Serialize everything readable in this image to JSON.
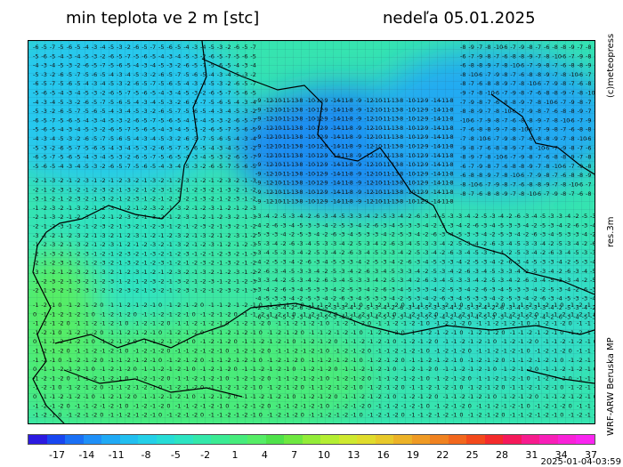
{
  "header": {
    "title_left": "min teplota ve 2 m [stc]",
    "title_right": "nedeľa 05.01.2025"
  },
  "side_labels": {
    "credit": "(c)meteopress",
    "resolution": "res.3m",
    "model": "WRF-ARW Beruska MP"
  },
  "timestamp": "2025-01-04-03:59",
  "legend": {
    "ticks": [
      "-17",
      "-14",
      "-11",
      "-8",
      "-5",
      "-2",
      "1",
      "4",
      "7",
      "10",
      "13",
      "16",
      "19",
      "22",
      "25",
      "28",
      "31",
      "34",
      "37"
    ],
    "colors": [
      "#2c1ae0",
      "#1846f0",
      "#1a70f5",
      "#1f90f8",
      "#20aaf5",
      "#22bff0",
      "#24d0e8",
      "#26dcd6",
      "#2ce4c2",
      "#33e8aa",
      "#3aeb93",
      "#46ec7c",
      "#55ed66",
      "#4fe24a",
      "#6ee840",
      "#93ec38",
      "#b4ee32",
      "#cfe92f",
      "#e0dc2c",
      "#e8c92a",
      "#ecb227",
      "#ef9a24",
      "#f08220",
      "#f2671d",
      "#f3491b",
      "#f42b2b",
      "#f5195a",
      "#f71c8e",
      "#f81fb8",
      "#f922d8",
      "#fa25f0"
    ]
  },
  "map": {
    "regions": [
      {
        "name": "northwest",
        "fill": "#27c8ee",
        "values": [
          "-6",
          "-5",
          "-7",
          "-5",
          "-6",
          "-5",
          "-4",
          "-3",
          "-4",
          "-5",
          "-3",
          "-2"
        ]
      },
      {
        "name": "north-central-cold",
        "fill": "#1c8ef2",
        "values": [
          "-9",
          "-12",
          "-10",
          "-11",
          "-13",
          "-8",
          "-10",
          "-12",
          "-9",
          "-14",
          "-11",
          "-8"
        ]
      },
      {
        "name": "northeast",
        "fill": "#22aaf2",
        "values": [
          "-8",
          "-9",
          "-7",
          "-8",
          "-10",
          "-6",
          "-7",
          "-9",
          "-8",
          "-7",
          "-6",
          "-8"
        ]
      },
      {
        "name": "west-central",
        "fill": "#2ee3c0",
        "values": [
          "-2",
          "-1",
          "-3",
          "-2",
          "-1",
          "-2",
          "-3",
          "-1",
          "-2",
          "-1",
          "-2",
          "-3"
        ]
      },
      {
        "name": "central",
        "fill": "#3ae6a4",
        "values": [
          "-3",
          "-4",
          "-2",
          "-5",
          "-3",
          "-4",
          "-2",
          "-6",
          "-3",
          "-4",
          "-5",
          "-3"
        ]
      },
      {
        "name": "south",
        "fill": "#48ec7a",
        "values": [
          "-1",
          "-2",
          "-1",
          "0",
          "-1",
          "-2",
          "-1",
          "-2",
          "0",
          "-1",
          "-1",
          "-2"
        ]
      }
    ]
  }
}
